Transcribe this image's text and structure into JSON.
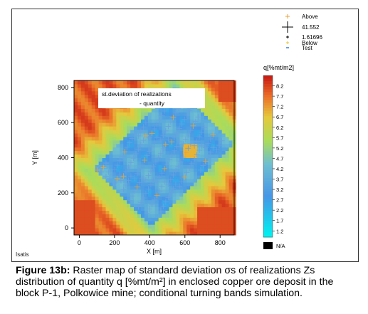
{
  "figure": {
    "caption_label": "Figure 13b:",
    "caption_text": " Raster map of standard deviation σs of realizations Zs distribution of quantity q [%mt/m²] in enclosed copper ore deposit in the block P-1, Polkowice mine; conditional turning bands simulation.",
    "software_label": "Isatis"
  },
  "chart_data": {
    "type": "heatmap",
    "title": "st.deviation of realizations\n- quantity",
    "title_line1": "st.deviation of realizations",
    "title_line2": "- quantity",
    "xlabel": "X [m]",
    "ylabel": "Y [m]",
    "xlim": [
      -30,
      880
    ],
    "ylim": [
      -40,
      840
    ],
    "x_ticks": [
      0,
      200,
      400,
      600,
      800
    ],
    "y_ticks": [
      0,
      200,
      400,
      600,
      800
    ],
    "colorbar": {
      "title": "q[%mt/m2]",
      "ticks": [
        1.2,
        1.7,
        2.2,
        2.7,
        3.2,
        3.7,
        4.2,
        4.7,
        5.2,
        5.7,
        6.2,
        6.7,
        7.2,
        7.7,
        8.2
      ],
      "tick_labels": [
        "1.2",
        "1.7",
        "2.2",
        "2.7",
        "3.2",
        "3.7",
        "4.2",
        "4.7",
        "5.2",
        "5.7",
        "6.2",
        "6.7",
        "7.2",
        "7.7",
        "8.2"
      ],
      "range": [
        0.9,
        8.7
      ],
      "na_label": "N/A",
      "na_color": "#000000"
    },
    "legend": {
      "above_label": "Above",
      "max_value": "41.552",
      "min_value": "1.61696",
      "below_label": "Below",
      "test_label": "Test",
      "above_color": "#e8a23a",
      "below_color": "#e8c43a",
      "test_color": "#6aa0e0"
    }
  }
}
